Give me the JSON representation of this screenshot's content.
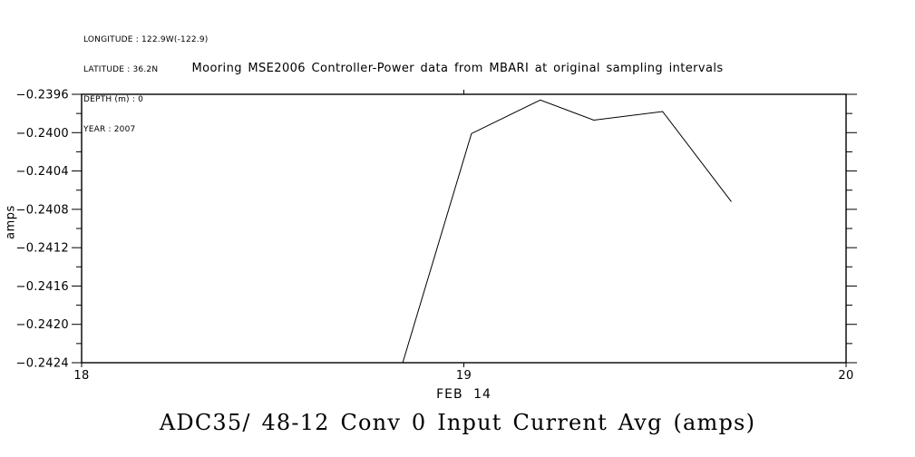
{
  "page": {
    "background_color": "#ffffff",
    "text_color": "#000000"
  },
  "header_info": {
    "lines": [
      "LONGITUDE : 122.9W(-122.9)",
      "LATITUDE : 36.2N",
      "DEPTH (m) : 0",
      "YEAR : 2007"
    ]
  },
  "bottom_title": "ADC35/ 48-12 Conv 0 Input Current Avg (amps)",
  "chart_data": {
    "type": "line",
    "title": "Mooring MSE2006 Controller-Power data from MBARI at original sampling intervals",
    "xlabel": "FEB 14",
    "ylabel": "amps",
    "xlim": [
      18,
      20
    ],
    "ylim": [
      -0.2424,
      -0.2396
    ],
    "grid": false,
    "frame": true,
    "line_color": "#000000",
    "x_ticks": {
      "values": [
        18,
        19,
        20
      ],
      "labels": [
        "18",
        "19",
        "20"
      ]
    },
    "y_ticks": {
      "values": [
        -0.2424,
        -0.242,
        -0.2416,
        -0.2412,
        -0.2408,
        -0.2404,
        -0.24,
        -0.2396
      ],
      "labels": [
        "−0.2424",
        "−0.2420",
        "−0.2416",
        "−0.2412",
        "−0.2408",
        "−0.2404",
        "−0.2400",
        "−0.2396"
      ],
      "minor_values": [
        -0.2422,
        -0.2418,
        -0.2414,
        -0.241,
        -0.2406,
        -0.2402,
        -0.2398
      ]
    },
    "series": [
      {
        "name": "ADC35/ 48-12 Conv 0 Input Current Avg",
        "color": "#000000",
        "x": [
          18.84,
          19.02,
          19.2,
          19.34,
          19.52,
          19.7
        ],
        "y": [
          -0.2424,
          -0.24001,
          -0.23966,
          -0.23987,
          -0.23978,
          -0.24072
        ]
      }
    ]
  }
}
